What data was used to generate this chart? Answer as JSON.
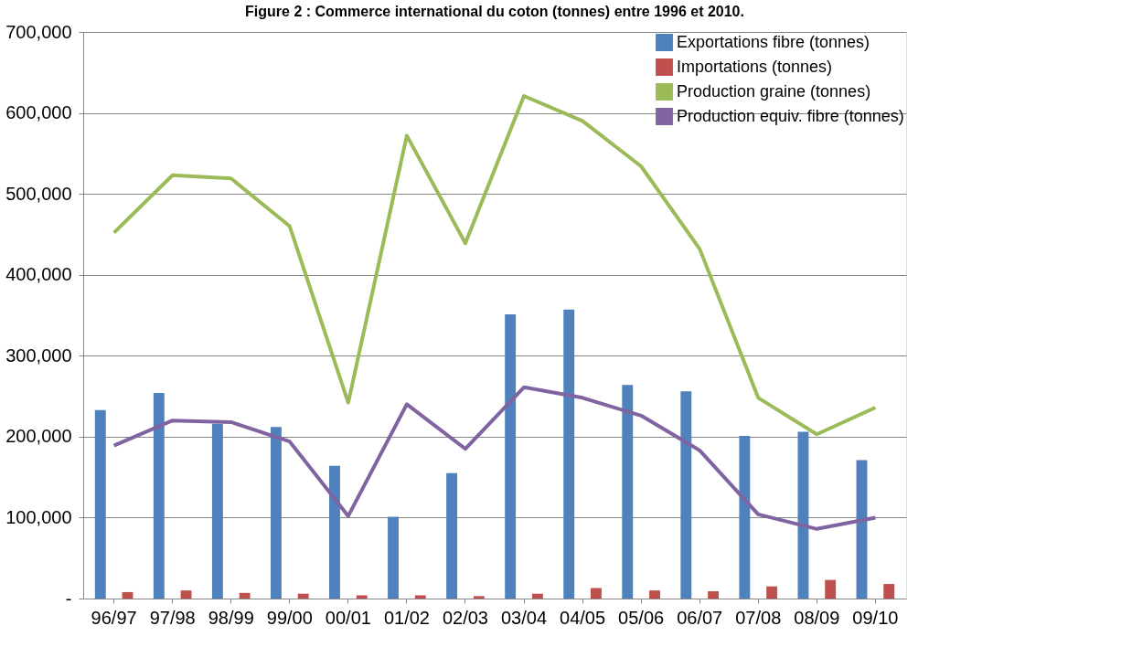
{
  "chart_data": {
    "type": "bar",
    "title": "Figure 2 : Commerce international du coton (tonnes) entre 1996 et 2010.",
    "categories": [
      "96/97",
      "97/98",
      "98/99",
      "99/00",
      "00/01",
      "01/02",
      "02/03",
      "03/04",
      "04/05",
      "05/06",
      "06/07",
      "07/08",
      "08/09",
      "09/10"
    ],
    "series": [
      {
        "name": "Exportations fibre (tonnes)",
        "color": "#4f81bd",
        "values": [
          233000,
          254000,
          216000,
          212000,
          164000,
          101000,
          155000,
          351000,
          357000,
          264000,
          256000,
          201000,
          206000,
          171000
        ]
      },
      {
        "name": "Importations (tonnes)",
        "color": "#c0504d",
        "values": [
          8000,
          10000,
          7000,
          6000,
          4000,
          4000,
          3000,
          6000,
          13000,
          10000,
          9000,
          15000,
          23000,
          18000
        ]
      },
      {
        "name": "Production graine (tonnes)",
        "color": "#9bbb59",
        "type": "line",
        "values": [
          452000,
          523000,
          519000,
          460000,
          242000,
          572000,
          439000,
          621000,
          590000,
          534000,
          432000,
          248000,
          203000,
          236000
        ]
      },
      {
        "name": "Production equiv. fibre (tonnes)",
        "color": "#8064a2",
        "type": "line",
        "values": [
          189000,
          220000,
          218000,
          194000,
          102000,
          240000,
          185000,
          261000,
          248000,
          226000,
          183000,
          104000,
          86000,
          100000
        ]
      }
    ],
    "ylim": [
      0,
      700000
    ],
    "yticks": [
      {
        "value": 0,
        "label": "-"
      },
      {
        "value": 100000,
        "label": "100,000"
      },
      {
        "value": 200000,
        "label": "200,000"
      },
      {
        "value": 300000,
        "label": "300,000"
      },
      {
        "value": 400000,
        "label": "400,000"
      },
      {
        "value": 500000,
        "label": "500,000"
      },
      {
        "value": 600000,
        "label": "600,000"
      },
      {
        "value": 700000,
        "label": "700,000"
      }
    ],
    "grid": "y",
    "legend": "top right",
    "line_style": "solid",
    "marker": "none"
  }
}
